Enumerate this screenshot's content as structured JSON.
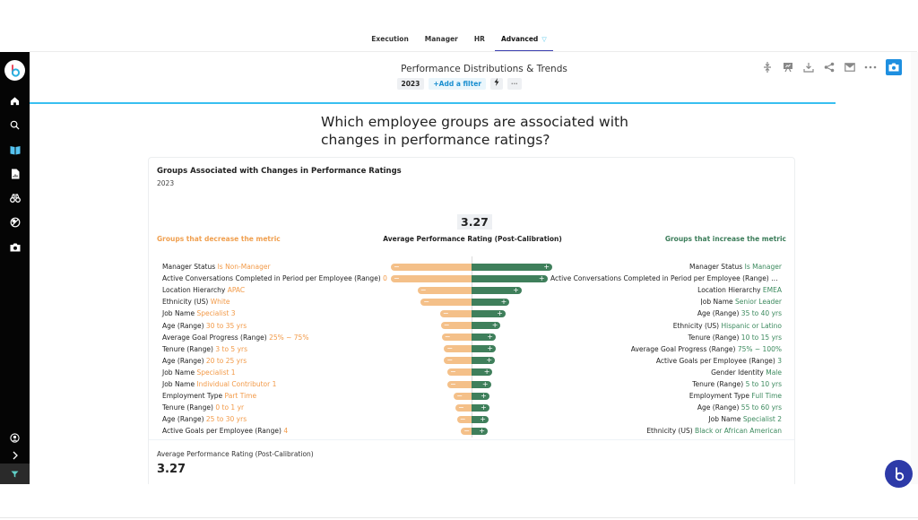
{
  "nav": {
    "tabs": [
      {
        "label": "Execution",
        "active": false
      },
      {
        "label": "Manager",
        "active": false
      },
      {
        "label": "HR",
        "active": false
      },
      {
        "label": "Advanced",
        "active": true,
        "icon": "filter-icon"
      }
    ]
  },
  "sidebar": {
    "logo": "b",
    "items": [
      {
        "icon": "home-icon"
      },
      {
        "icon": "search-icon"
      },
      {
        "icon": "book-icon",
        "active": true
      },
      {
        "icon": "report-icon"
      },
      {
        "icon": "binoculars-icon"
      },
      {
        "icon": "explore-icon"
      },
      {
        "icon": "camera-icon"
      }
    ],
    "bottom_items": [
      {
        "icon": "user-icon"
      },
      {
        "icon": "chevron-right-icon"
      },
      {
        "icon": "filter-icon"
      }
    ]
  },
  "header": {
    "title": "Performance Distributions & Trends",
    "filters": {
      "year": "2023",
      "add_filter": "Add a filter",
      "add_icon": "+",
      "bolt_icon": "bolt-icon",
      "more_icon": "⋯"
    },
    "toolbar": [
      "compress-icon",
      "presentation-icon",
      "download-icon",
      "share-icon",
      "email-icon",
      "more-icon",
      "camera-icon"
    ]
  },
  "question": "Which employee groups are associated with changes in performance ratings?",
  "card": {
    "title": "Groups Associated with Changes in Performance Ratings",
    "subtitle": "2023",
    "metric_value": "3.27",
    "metric_label": "Average Performance Rating (Post-Calibration)",
    "decrease_label": "Groups that decrease the metric",
    "increase_label": "Groups that increase the metric",
    "footer_label": "Average Performance Rating (Post-Calibration)",
    "footer_value": "3.27",
    "colors": {
      "decrease": "#f4c089",
      "increase": "#3f7f5b",
      "decrease_text": "#f29a48",
      "increase_text": "#3c8a5e"
    }
  },
  "chart_data": {
    "type": "bar",
    "title": "Groups Associated with Changes in Performance Ratings",
    "subtitle": "2023",
    "xlabel": "Average Performance Rating (Post-Calibration)",
    "baseline": 3.27,
    "note": "Relative impact magnitudes (max = 1.0), estimated from bar lengths",
    "decrease": [
      {
        "field": "Manager Status",
        "value": "Is Non-Manager",
        "impact": 1.0
      },
      {
        "field": "Active Conversations Completed in Period per Employee (Range)",
        "value": "0",
        "impact": 1.0
      },
      {
        "field": "Location Hierarchy",
        "value": "APAC",
        "impact": 0.67
      },
      {
        "field": "Ethnicity (US)",
        "value": "White",
        "impact": 0.63
      },
      {
        "field": "Job Name",
        "value": "Specialist 3",
        "impact": 0.39
      },
      {
        "field": "Age (Range)",
        "value": "30 to 35 yrs",
        "impact": 0.38
      },
      {
        "field": "Average Goal Progress (Range)",
        "value": "25% ~ 75%",
        "impact": 0.37
      },
      {
        "field": "Tenure (Range)",
        "value": "3 to 5 yrs",
        "impact": 0.34
      },
      {
        "field": "Age (Range)",
        "value": "20 to 25 yrs",
        "impact": 0.34
      },
      {
        "field": "Job Name",
        "value": "Specialist 1",
        "impact": 0.3
      },
      {
        "field": "Job Name",
        "value": "Individual Contributor 1",
        "impact": 0.3
      },
      {
        "field": "Employment Type",
        "value": "Part Time",
        "impact": 0.22
      },
      {
        "field": "Tenure (Range)",
        "value": "0 to 1 yr",
        "impact": 0.2
      },
      {
        "field": "Age (Range)",
        "value": "25 to 30 yrs",
        "impact": 0.18
      },
      {
        "field": "Active Goals per Employee (Range)",
        "value": "4",
        "impact": 0.13
      }
    ],
    "increase": [
      {
        "field": "Manager Status",
        "value": "Is Manager",
        "impact": 1.0
      },
      {
        "field": "Active Conversations Completed in Period per Employee (Range)",
        "value": "1...",
        "impact": 0.94
      },
      {
        "field": "Location Hierarchy",
        "value": "EMEA",
        "impact": 0.62
      },
      {
        "field": "Job Name",
        "value": "Senior Leader",
        "impact": 0.47
      },
      {
        "field": "Age (Range)",
        "value": "35 to 40 yrs",
        "impact": 0.42
      },
      {
        "field": "Ethnicity (US)",
        "value": "Hispanic or Latino",
        "impact": 0.36
      },
      {
        "field": "Tenure (Range)",
        "value": "10 to 15 yrs",
        "impact": 0.3
      },
      {
        "field": "Average Goal Progress (Range)",
        "value": "75% ~ 100%",
        "impact": 0.3
      },
      {
        "field": "Active Goals per Employee (Range)",
        "value": "3",
        "impact": 0.29
      },
      {
        "field": "Gender Identity",
        "value": "Male",
        "impact": 0.26
      },
      {
        "field": "Tenure (Range)",
        "value": "5 to 10 yrs",
        "impact": 0.24
      },
      {
        "field": "Employment Type",
        "value": "Full Time",
        "impact": 0.22
      },
      {
        "field": "Age (Range)",
        "value": "55 to 60 yrs",
        "impact": 0.22
      },
      {
        "field": "Job Name",
        "value": "Specialist 2",
        "impact": 0.21
      },
      {
        "field": "Ethnicity (US)",
        "value": "Black or African American",
        "impact": 0.2
      }
    ]
  }
}
